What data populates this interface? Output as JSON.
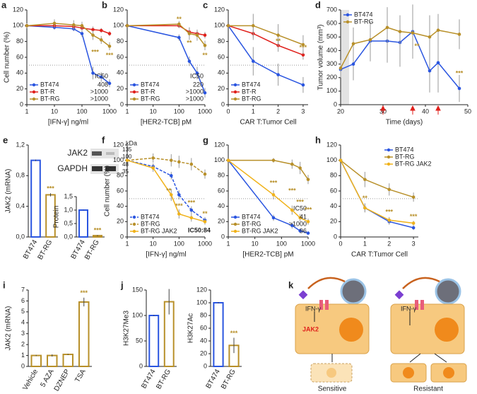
{
  "chart_data": [
    {
      "panel": "a",
      "type": "line",
      "xlog": true,
      "ylabel": "Cell number (%)",
      "xlabel": "[IFN-γ] ng/ml",
      "x": [
        1,
        10,
        50,
        100,
        250,
        500,
        1000
      ],
      "xlim": [
        1,
        1000
      ],
      "xticks": [
        1,
        10,
        100,
        1000
      ],
      "ylim": [
        0,
        120
      ],
      "yticks": [
        0,
        20,
        40,
        60,
        80,
        100,
        120
      ],
      "hline": 50,
      "legend": "bottom-left",
      "series": [
        {
          "name": "BT474",
          "color": "#2a55e0",
          "values": [
            100,
            98,
            96,
            90,
            40,
            35,
            27
          ],
          "errors": [
            2,
            3,
            3,
            4,
            8,
            6,
            5
          ]
        },
        {
          "name": "BT-R",
          "color": "#e0211c",
          "values": [
            100,
            100,
            99,
            97,
            95,
            94,
            90
          ],
          "errors": [
            2,
            2,
            3,
            3,
            4,
            3,
            3
          ]
        },
        {
          "name": "BT-RG",
          "color": "#b8902a",
          "values": [
            100,
            103,
            101,
            100,
            88,
            82,
            74
          ],
          "errors": [
            3,
            5,
            6,
            5,
            6,
            5,
            5
          ]
        }
      ],
      "ic50_title": "IC50",
      "ic50": [
        "408",
        ">1000",
        ">1000"
      ],
      "annotations": [
        {
          "text": "***",
          "x": 300,
          "y": 66,
          "color": "#b8902a"
        },
        {
          "text": "***",
          "x": 1000,
          "y": 62,
          "color": "#b8902a"
        }
      ]
    },
    {
      "panel": "b",
      "type": "line",
      "xlog": true,
      "xlabel": "[HER2-TCB] pM",
      "x": [
        1,
        100,
        250,
        500,
        1000
      ],
      "xlim": [
        1,
        1000
      ],
      "xticks": [
        1,
        10,
        100,
        1000
      ],
      "ylim": [
        0,
        120
      ],
      "yticks": [
        0,
        20,
        40,
        60,
        80,
        100,
        120
      ],
      "hline": 50,
      "legend": "bottom-left",
      "series": [
        {
          "name": "BT474",
          "color": "#2a55e0",
          "values": [
            100,
            85,
            55,
            40,
            15
          ],
          "errors": [
            2,
            4,
            6,
            8,
            6
          ]
        },
        {
          "name": "BT-R",
          "color": "#e0211c",
          "values": [
            100,
            100,
            92,
            90,
            88
          ],
          "errors": [
            2,
            3,
            5,
            5,
            4
          ]
        },
        {
          "name": "BT-RG",
          "color": "#b8902a",
          "values": [
            100,
            102,
            90,
            88,
            75
          ],
          "errors": [
            2,
            4,
            8,
            7,
            6
          ]
        }
      ],
      "ic50_title": "IC50",
      "ic50": [
        "220",
        ">1000",
        ">1000"
      ],
      "annotations": [
        {
          "text": "**",
          "x": 100,
          "y": 108,
          "color": "#b8902a"
        },
        {
          "text": "**",
          "x": 250,
          "y": 78,
          "color": "#b8902a"
        },
        {
          "text": "**",
          "x": 1000,
          "y": 62,
          "color": "#b8902a"
        }
      ]
    },
    {
      "panel": "c",
      "type": "line",
      "xlabel": "CAR T:Tumor Cell",
      "x": [
        0,
        1,
        2,
        3
      ],
      "xlim": [
        0,
        3.2
      ],
      "xticks": [
        0,
        1,
        2,
        3
      ],
      "ylim": [
        0,
        120
      ],
      "yticks": [
        0,
        20,
        40,
        60,
        80,
        100,
        120
      ],
      "hline": 50,
      "legend": "bottom-left",
      "series": [
        {
          "name": "BT474",
          "color": "#2a55e0",
          "values": [
            100,
            55,
            38,
            25
          ],
          "errors": [
            2,
            18,
            14,
            10
          ]
        },
        {
          "name": "BT-R",
          "color": "#e0211c",
          "values": [
            100,
            90,
            75,
            63
          ],
          "errors": [
            2,
            8,
            8,
            6
          ]
        },
        {
          "name": "BT-RG",
          "color": "#b8902a",
          "values": [
            100,
            100,
            88,
            76
          ],
          "errors": [
            2,
            15,
            14,
            12
          ]
        }
      ],
      "annotations": [
        {
          "text": "**",
          "x": 2,
          "y": 80,
          "color": "#b8902a"
        },
        {
          "text": "***",
          "x": 3,
          "y": 72,
          "color": "#b8902a"
        }
      ]
    },
    {
      "panel": "d",
      "type": "line",
      "ylabel": "Tumor volume (mm³)",
      "xlabel": "Time (days)",
      "x": [
        20,
        23,
        27,
        31,
        34,
        37,
        41,
        43,
        48
      ],
      "xlim": [
        20,
        50
      ],
      "xticks": [
        20,
        30,
        40,
        50
      ],
      "ylim": [
        0,
        700
      ],
      "yticks": [
        0,
        100,
        200,
        300,
        400,
        500,
        600,
        700
      ],
      "legend": "top-left",
      "shade": [
        20,
        22
      ],
      "arrows": [
        30,
        37,
        43
      ],
      "series": [
        {
          "name": "BT474",
          "color": "#2a55e0",
          "values": [
            260,
            300,
            470,
            470,
            460,
            540,
            250,
            310,
            120
          ],
          "errors": [
            60,
            120,
            150,
            160,
            180,
            200,
            160,
            220,
            100
          ]
        },
        {
          "name": "BT-RG",
          "color": "#b8902a",
          "values": [
            270,
            450,
            480,
            570,
            540,
            530,
            500,
            550,
            520
          ],
          "errors": [
            60,
            120,
            140,
            150,
            120,
            150,
            160,
            120,
            110
          ]
        }
      ],
      "annotations": [
        {
          "text": "**",
          "x": 38,
          "y": 430,
          "color": "#b8902a"
        },
        {
          "text": "***",
          "x": 48,
          "y": 230,
          "color": "#b8902a"
        }
      ]
    },
    {
      "panel": "e",
      "type": "bar",
      "ylabel": "JAK2 (mRNA)",
      "categories": [
        "BT474",
        "BT-RG"
      ],
      "values": [
        1.0,
        0.55
      ],
      "errors": [
        0.01,
        0.02
      ],
      "colors": [
        "#2a55e0",
        "#b8902a"
      ],
      "ylim": [
        0,
        1.2
      ],
      "yticks": [
        {
          "value": 0,
          "label": "0,0"
        },
        {
          "value": 0.4,
          "label": "0,4"
        },
        {
          "value": 0.8,
          "label": "0,8"
        },
        {
          "value": 1.2,
          "label": "1,2"
        }
      ],
      "annotations": [
        {
          "text": "***",
          "index": 1,
          "color": "#b8902a"
        }
      ]
    },
    {
      "type": "bar",
      "ylabel": "Protein",
      "categories": [
        "BT474",
        "BT-RG"
      ],
      "values": [
        1.0,
        0.05
      ],
      "errors": [
        0.01,
        0.02
      ],
      "colors": [
        "#2a55e0",
        "#b8902a"
      ],
      "ylim": [
        0,
        1.5
      ],
      "yticks": [
        {
          "value": 0,
          "label": "0,0"
        },
        {
          "value": 0.5,
          "label": "0,5"
        },
        {
          "value": 1,
          "label": "1,0"
        },
        {
          "value": 1.5,
          "label": "1,5"
        }
      ],
      "annotations": [
        {
          "text": "***",
          "index": 1,
          "color": "#b8902a"
        }
      ]
    },
    {
      "panel": "f",
      "type": "line",
      "xlog": true,
      "ylabel": "Cell number (%)",
      "xlabel": "[IFN-γ] ng/ml",
      "x": [
        1,
        10,
        50,
        100,
        300,
        1000
      ],
      "xlim": [
        1,
        1000
      ],
      "xticks": [
        1,
        10,
        100,
        1000
      ],
      "ylim": [
        0,
        120
      ],
      "yticks": [
        0,
        20,
        40,
        60,
        80,
        100,
        120
      ],
      "hline": 50,
      "legend": "bottom-left",
      "series": [
        {
          "name": "BT474",
          "color": "#2a55e0",
          "dashed": true,
          "values": [
            100,
            92,
            80,
            55,
            35,
            22
          ],
          "errors": [
            2,
            4,
            5,
            6,
            5,
            4
          ]
        },
        {
          "name": "BT-RG",
          "color": "#b8902a",
          "dashed": true,
          "values": [
            100,
            103,
            100,
            98,
            95,
            82
          ],
          "errors": [
            2,
            6,
            8,
            8,
            8,
            6
          ]
        },
        {
          "name": "BT-RG JAK2",
          "color": "#f0b21a",
          "values": [
            100,
            90,
            55,
            30,
            25,
            20
          ],
          "errors": [
            2,
            5,
            8,
            6,
            5,
            4
          ]
        }
      ],
      "annotations": [
        {
          "text": "**",
          "x": 40,
          "y": 60,
          "color": "#b8902a"
        },
        {
          "text": "***",
          "x": 100,
          "y": 40,
          "color": "#b8902a"
        },
        {
          "text": "***",
          "x": 300,
          "y": 44,
          "color": "#b8902a"
        },
        {
          "text": "**",
          "x": 1000,
          "y": 30,
          "color": "#b8902a"
        },
        {
          "text": "IC50:84",
          "x": 600,
          "y": 8,
          "color": "#222"
        }
      ]
    },
    {
      "panel": "g",
      "type": "line",
      "xlog": true,
      "xlabel": "[HER2-TCB] pM",
      "x": [
        1,
        50,
        250,
        500,
        1000
      ],
      "xlim": [
        1,
        1000
      ],
      "xticks": [
        1,
        10,
        100,
        1000
      ],
      "ylim": [
        0,
        120
      ],
      "yticks": [
        0,
        20,
        40,
        60,
        80,
        100,
        120
      ],
      "hline": 50,
      "legend": "bottom-left",
      "series": [
        {
          "name": "BT474",
          "color": "#2a55e0",
          "values": [
            100,
            25,
            15,
            8,
            5
          ],
          "errors": [
            2,
            4,
            4,
            3,
            2
          ]
        },
        {
          "name": "BT-RG",
          "color": "#b8902a",
          "values": [
            100,
            100,
            95,
            90,
            75
          ],
          "errors": [
            2,
            3,
            6,
            8,
            6
          ]
        },
        {
          "name": "BT-RG JAK2",
          "color": "#f0b21a",
          "values": [
            100,
            55,
            35,
            25,
            20
          ],
          "errors": [
            2,
            6,
            6,
            5,
            4
          ]
        }
      ],
      "ic50_title": "IC50",
      "ic50": [
        "41",
        ">1000",
        "96"
      ],
      "annotations": [
        {
          "text": "***",
          "x": 50,
          "y": 70,
          "color": "#b8902a"
        },
        {
          "text": "***",
          "x": 250,
          "y": 60,
          "color": "#b8902a"
        },
        {
          "text": "***",
          "x": 500,
          "y": 45,
          "color": "#b8902a"
        },
        {
          "text": "***",
          "x": 1000,
          "y": 35,
          "color": "#b8902a"
        }
      ]
    },
    {
      "panel": "h",
      "type": "line",
      "xlabel": "CAR T:Tumor Cell",
      "x": [
        0,
        1,
        2,
        3
      ],
      "xlim": [
        0,
        3.2
      ],
      "xticks": [
        0,
        1,
        2,
        3
      ],
      "ylim": [
        0,
        120
      ],
      "yticks": [
        0,
        20,
        40,
        60,
        80,
        100,
        120
      ],
      "hline": 50,
      "legend": "top-right",
      "series": [
        {
          "name": "BT474",
          "color": "#2a55e0",
          "values": [
            100,
            38,
            20,
            12
          ],
          "errors": [
            2,
            5,
            4,
            3
          ]
        },
        {
          "name": "BT-RG",
          "color": "#b8902a",
          "values": [
            100,
            75,
            62,
            52
          ],
          "errors": [
            2,
            10,
            8,
            6
          ]
        },
        {
          "name": "BT-RG JAK2",
          "color": "#f0b21a",
          "values": [
            100,
            38,
            22,
            18
          ],
          "errors": [
            2,
            6,
            4,
            3
          ]
        }
      ],
      "annotations": [
        {
          "text": "**",
          "x": 1,
          "y": 50,
          "color": "#b8902a"
        },
        {
          "text": "***",
          "x": 2,
          "y": 32,
          "color": "#b8902a"
        },
        {
          "text": "***",
          "x": 3,
          "y": 26,
          "color": "#b8902a"
        }
      ]
    },
    {
      "panel": "i",
      "type": "bar",
      "ylabel": "JAK2 (mRNA)",
      "categories": [
        "Vehicle",
        "5 AZA",
        "DZNEP",
        "TSA"
      ],
      "values": [
        1.0,
        1.0,
        1.1,
        5.9
      ],
      "errors": [
        0.05,
        0.1,
        0.05,
        0.4
      ],
      "color": "#b8902a",
      "ylim": [
        0,
        7
      ],
      "yticks": [
        0,
        1,
        2,
        3,
        4,
        5,
        6,
        7
      ],
      "annotations": [
        {
          "text": "***",
          "index": 3,
          "color": "#b8902a"
        }
      ]
    },
    {
      "panel": "j",
      "type": "bar",
      "ylabel": "H3K27Me3",
      "categories": [
        "BT474",
        "BT-RG"
      ],
      "values": [
        100,
        127
      ],
      "errors": [
        1,
        25
      ],
      "colors": [
        "#2a55e0",
        "#b8902a"
      ],
      "ylim": [
        0,
        150
      ],
      "yticks": [
        0,
        50,
        100,
        150
      ],
      "annotations": []
    },
    {
      "type": "bar",
      "ylabel": "H3K27Ac",
      "categories": [
        "BT474",
        "BT-RG"
      ],
      "values": [
        100,
        33
      ],
      "errors": [
        1,
        12
      ],
      "colors": [
        "#2a55e0",
        "#b8902a"
      ],
      "ylim": [
        0,
        120
      ],
      "yticks": [
        0,
        20,
        40,
        60,
        80,
        100,
        120
      ],
      "annotations": [
        {
          "text": "***",
          "index": 1,
          "color": "#b8902a"
        }
      ]
    }
  ],
  "blot": {
    "unit": "kDa",
    "markers": [
      "135",
      "100",
      "48",
      "35"
    ],
    "proteins": [
      "JAK2",
      "GAPDH"
    ]
  },
  "diagram": {
    "panel": "k",
    "left_ligand": "IFN-γ",
    "left_protein": "JAK2",
    "left_label": "Sensitive",
    "right_ligand": "IFN-γ",
    "right_label": "Resistant"
  }
}
